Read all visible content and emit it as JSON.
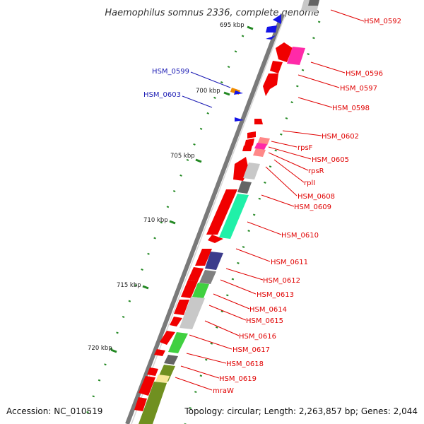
{
  "title": "Haemophilus somnus 2336, complete genome",
  "footer": {
    "accession": "Accession: NC_010519",
    "summary": "Topology: circular; Length: 2,263,857 bp; Genes: 2,044"
  },
  "colors": {
    "red": "#f00000",
    "blue": "#1414e6",
    "orange": "#f08c00",
    "magenta": "#ff2aa8",
    "pink": "#ff8888",
    "light_gray": "#c8c8c8",
    "dark_gray": "#646464",
    "mint": "#20f0a8",
    "navy": "#3c3c8c",
    "green": "#40d040",
    "olive": "#709020",
    "pale_yellow": "#f8e898",
    "tick_green": "#228822",
    "label_red": "#e00000",
    "label_blue": "#1a1ab4"
  },
  "kbp_ticks": [
    "695 kbp",
    "700 kbp",
    "705 kbp",
    "710 kbp",
    "715 kbp",
    "720 kbp"
  ],
  "genes_top": [
    "HSM_0592"
  ],
  "genes_right": [
    "HSM_0596",
    "HSM_0597",
    "HSM_0598",
    "HSM_0602",
    "rpsF",
    "HSM_0605",
    "rpsR",
    "rplI",
    "HSM_0608",
    "HSM_0609",
    "HSM_0610",
    "HSM_0611",
    "HSM_0612",
    "HSM_0613",
    "HSM_0614",
    "HSM_0615",
    "HSM_0616",
    "HSM_0617",
    "HSM_0618",
    "HSM_0619",
    "mraW"
  ],
  "genes_left": [
    "HSM_0599",
    "HSM_0603"
  ]
}
